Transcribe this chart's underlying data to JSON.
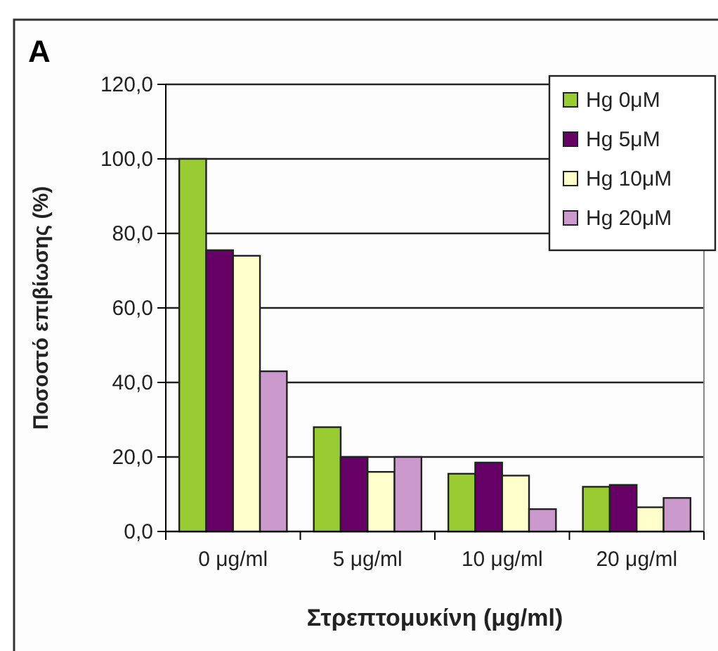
{
  "chart_data": {
    "type": "bar",
    "title": "A",
    "xlabel": "Στρεπτομυκίνη (μg/ml)",
    "ylabel": "Ποσοστό επιβίωσης (%)",
    "categories": [
      "0 μg/ml",
      "5 μg/ml",
      "10 μg/ml",
      "20 μg/ml"
    ],
    "series": [
      {
        "name": "Hg 0μM",
        "color": "#99cc33",
        "values": [
          100,
          28,
          15.5,
          12
        ]
      },
      {
        "name": "Hg 5μM",
        "color": "#660066",
        "values": [
          75.5,
          20,
          18.5,
          12.5
        ]
      },
      {
        "name": "Hg 10μM",
        "color": "#ffffcc",
        "values": [
          74,
          16,
          15,
          6.5
        ]
      },
      {
        "name": "Hg 20μM",
        "color": "#cc99cc",
        "values": [
          43,
          20,
          6,
          9
        ]
      }
    ],
    "ylim": [
      0,
      120
    ],
    "yticks": [
      {
        "value": 0,
        "label": "0,0"
      },
      {
        "value": 20,
        "label": "20,0"
      },
      {
        "value": 40,
        "label": "40,0"
      },
      {
        "value": 60,
        "label": "60,0"
      },
      {
        "value": 80,
        "label": "80,0"
      },
      {
        "value": 100,
        "label": "100,0"
      },
      {
        "value": 120,
        "label": "120,0"
      }
    ],
    "grid": "y",
    "legend": "top right"
  }
}
